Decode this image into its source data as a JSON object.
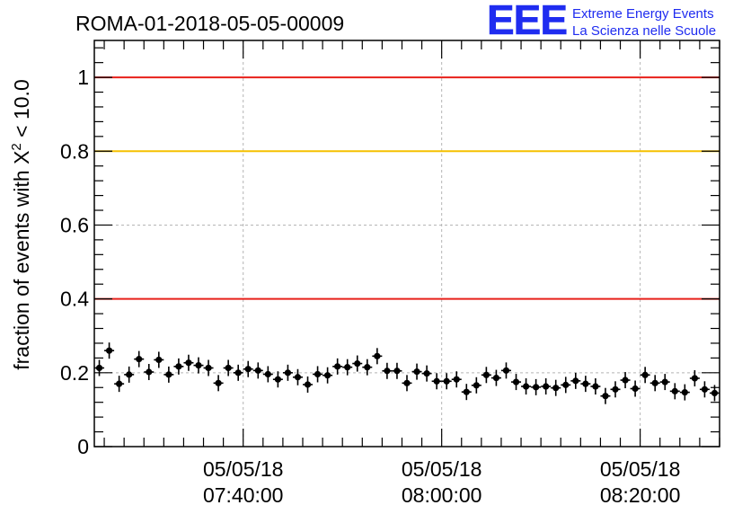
{
  "header": {
    "run_title": "ROMA-01-2018-05-05-00009",
    "logo_letters": "EEE",
    "logo_line1": "Extreme Energy Events",
    "logo_line2": "La Scienza nelle Scuole"
  },
  "chart_data": {
    "type": "scatter",
    "title": "ROMA-01-2018-05-05-00009",
    "ylabel_main": "fraction of events with ",
    "ylabel_symbol": "X",
    "ylabel_exp": "2",
    "ylabel_tail": " < 10.0",
    "xlabel": "",
    "x_unit": "time (hh:mm:ss)",
    "xlim": [
      "07:25:00",
      "08:28:00"
    ],
    "ylim": [
      0,
      1.1
    ],
    "x_ticks": [
      {
        "time": "07:40:00",
        "date": "05/05/18"
      },
      {
        "time": "08:00:00",
        "date": "05/05/18"
      },
      {
        "time": "08:20:00",
        "date": "05/05/18"
      }
    ],
    "y_ticks": [
      {
        "value": 0,
        "label": "0"
      },
      {
        "value": 0.2,
        "label": "0.2"
      },
      {
        "value": 0.4,
        "label": "0.4"
      },
      {
        "value": 0.6,
        "label": "0.6"
      },
      {
        "value": 0.8,
        "label": "0.8"
      },
      {
        "value": 1.0,
        "label": "1"
      }
    ],
    "grid": true,
    "reference_lines": [
      {
        "y": 1.0,
        "color": "#e8201a"
      },
      {
        "y": 0.8,
        "color": "#f5c000"
      },
      {
        "y": 0.4,
        "color": "#e8201a"
      }
    ],
    "series": [
      {
        "marker_color": "#000000",
        "x": [
          "07:25:30",
          "07:26:30",
          "07:27:30",
          "07:28:30",
          "07:29:30",
          "07:30:30",
          "07:31:30",
          "07:32:30",
          "07:33:30",
          "07:34:30",
          "07:35:30",
          "07:36:30",
          "07:37:30",
          "07:38:30",
          "07:39:30",
          "07:40:30",
          "07:41:30",
          "07:42:30",
          "07:43:30",
          "07:44:30",
          "07:45:30",
          "07:46:30",
          "07:47:30",
          "07:48:30",
          "07:49:30",
          "07:50:30",
          "07:51:30",
          "07:52:30",
          "07:53:30",
          "07:54:30",
          "07:55:30",
          "07:56:30",
          "07:57:30",
          "07:58:30",
          "07:59:30",
          "08:00:30",
          "08:01:30",
          "08:02:30",
          "08:03:30",
          "08:04:30",
          "08:05:30",
          "08:06:30",
          "08:07:30",
          "08:08:30",
          "08:09:30",
          "08:10:30",
          "08:11:30",
          "08:12:30",
          "08:13:30",
          "08:14:30",
          "08:15:30",
          "08:16:30",
          "08:17:30",
          "08:18:30",
          "08:19:30",
          "08:20:30",
          "08:21:30",
          "08:22:30",
          "08:23:30",
          "08:24:30",
          "08:25:30",
          "08:26:30",
          "08:27:30"
        ],
        "y": [
          0.213,
          0.26,
          0.17,
          0.195,
          0.237,
          0.202,
          0.235,
          0.195,
          0.217,
          0.227,
          0.22,
          0.213,
          0.172,
          0.213,
          0.2,
          0.21,
          0.206,
          0.196,
          0.182,
          0.2,
          0.188,
          0.168,
          0.196,
          0.193,
          0.217,
          0.215,
          0.225,
          0.215,
          0.245,
          0.205,
          0.205,
          0.172,
          0.203,
          0.198,
          0.177,
          0.177,
          0.182,
          0.148,
          0.166,
          0.194,
          0.186,
          0.206,
          0.175,
          0.163,
          0.161,
          0.163,
          0.159,
          0.167,
          0.178,
          0.17,
          0.163,
          0.137,
          0.155,
          0.18,
          0.157,
          0.194,
          0.172,
          0.175,
          0.15,
          0.147,
          0.185,
          0.155,
          0.145
        ]
      }
    ]
  }
}
